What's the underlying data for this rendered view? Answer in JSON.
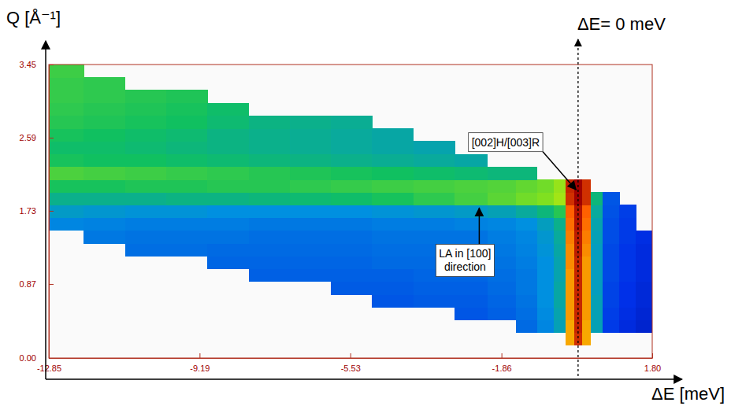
{
  "chart_data": {
    "type": "heatmap",
    "x_label": "ΔE [meV]",
    "y_label": "Q [Å⁻¹]",
    "xlim": [
      -12.85,
      1.8
    ],
    "ylim": [
      0,
      3.45
    ],
    "xticks": [
      -12.85,
      -9.19,
      -5.53,
      -1.86,
      {
        "value": 1.8,
        "label": "1.80"
      }
    ],
    "yticks": [
      {
        "value": 0,
        "label": "0.00"
      },
      0.87,
      1.73,
      2.59,
      3.45
    ],
    "zlim": [
      0,
      10
    ],
    "reference_line": {
      "x": 0,
      "label": "ΔE= 0 meV"
    },
    "annotations": [
      {
        "text": "[002]H/[003]R",
        "x": 0,
        "y": 1.95
      },
      {
        "text": "LA in [100] direction",
        "x": -2.4,
        "y": 1.8
      }
    ],
    "x_edges": [
      -12.85,
      -12.0,
      -11.0,
      -10.0,
      -9.0,
      -8.0,
      -7.0,
      -6.0,
      -5.0,
      -4.0,
      -3.0,
      -2.2,
      -1.5,
      -1.0,
      -0.6,
      -0.3,
      -0.1,
      0.1,
      0.3,
      0.6,
      1.0,
      1.4,
      1.8
    ],
    "y_edges": [
      0,
      0.15,
      0.3,
      0.45,
      0.6,
      0.75,
      0.9,
      1.05,
      1.2,
      1.35,
      1.5,
      1.65,
      1.8,
      1.95,
      2.1,
      2.25,
      2.4,
      2.55,
      2.7,
      2.85,
      3.0,
      3.15,
      3.3,
      3.45
    ],
    "z": [
      [
        null,
        null,
        null,
        null,
        null,
        null,
        null,
        null,
        null,
        null,
        null,
        null,
        null,
        null,
        null,
        null,
        null,
        null,
        null,
        null,
        null,
        null
      ],
      [
        null,
        null,
        null,
        null,
        null,
        null,
        null,
        null,
        null,
        null,
        null,
        null,
        null,
        null,
        null,
        8.5,
        9.5,
        8.5,
        null,
        null,
        null,
        null
      ],
      [
        null,
        null,
        null,
        null,
        null,
        null,
        null,
        null,
        null,
        null,
        null,
        null,
        3.2,
        3.8,
        4.5,
        8.5,
        9.6,
        8.5,
        4.5,
        2.2,
        1.8,
        1.5
      ],
      [
        null,
        null,
        null,
        null,
        null,
        null,
        null,
        null,
        null,
        null,
        2.8,
        3.0,
        3.3,
        3.9,
        4.6,
        8.6,
        9.6,
        8.6,
        4.5,
        2.3,
        1.9,
        1.6
      ],
      [
        null,
        null,
        null,
        null,
        null,
        null,
        null,
        null,
        2.8,
        2.9,
        2.9,
        3.1,
        3.4,
        4.0,
        4.7,
        8.6,
        9.6,
        8.6,
        4.5,
        2.4,
        2.0,
        1.7
      ],
      [
        null,
        null,
        null,
        null,
        null,
        null,
        null,
        2.9,
        2.9,
        3.0,
        3.0,
        3.2,
        3.5,
        4.0,
        4.7,
        8.6,
        9.6,
        8.6,
        4.4,
        2.4,
        2.0,
        1.7
      ],
      [
        null,
        null,
        null,
        null,
        null,
        3.0,
        3.0,
        3.0,
        3.0,
        3.1,
        3.1,
        3.3,
        3.5,
        4.0,
        4.6,
        8.6,
        9.6,
        8.6,
        4.4,
        2.5,
        2.1,
        1.8
      ],
      [
        null,
        null,
        null,
        null,
        3.1,
        3.1,
        3.1,
        3.1,
        3.2,
        3.2,
        3.2,
        3.4,
        3.6,
        4.0,
        4.6,
        8.7,
        9.6,
        8.6,
        4.4,
        2.5,
        2.1,
        1.8
      ],
      [
        null,
        null,
        3.3,
        3.3,
        3.2,
        3.2,
        3.2,
        3.2,
        3.3,
        3.3,
        3.3,
        3.5,
        3.7,
        4.1,
        4.7,
        8.7,
        9.7,
        8.7,
        4.4,
        2.5,
        2.1,
        1.8
      ],
      [
        null,
        3.5,
        3.4,
        3.4,
        3.4,
        3.3,
        3.3,
        3.3,
        3.4,
        3.4,
        3.4,
        3.6,
        3.8,
        4.2,
        4.8,
        8.8,
        9.7,
        8.8,
        4.5,
        2.6,
        2.2,
        1.9
      ],
      [
        3.8,
        3.7,
        3.6,
        3.6,
        3.6,
        3.5,
        3.5,
        3.5,
        3.6,
        3.6,
        3.7,
        3.8,
        4.0,
        4.4,
        5.0,
        8.9,
        9.8,
        8.9,
        4.6,
        2.6,
        2.2,
        null
      ],
      [
        4.3,
        4.2,
        4.1,
        4.1,
        4.0,
        4.0,
        4.0,
        4.0,
        4.1,
        4.2,
        4.3,
        4.5,
        4.8,
        5.2,
        5.8,
        9.0,
        9.8,
        9.0,
        4.8,
        2.7,
        2.3,
        null
      ],
      [
        5.0,
        5.0,
        5.0,
        5.1,
        5.1,
        5.2,
        5.3,
        5.4,
        5.6,
        5.9,
        6.2,
        6.5,
        6.8,
        7.0,
        7.3,
        9.5,
        10,
        9.5,
        5.2,
        2.8,
        null,
        null
      ],
      [
        5.6,
        5.6,
        5.7,
        5.7,
        5.8,
        5.8,
        5.9,
        6.0,
        6.1,
        6.2,
        6.3,
        6.4,
        6.6,
        6.8,
        7.2,
        9.6,
        10,
        9.5,
        null,
        null,
        null,
        null
      ],
      [
        6.3,
        6.2,
        6.1,
        6.0,
        5.9,
        5.8,
        5.7,
        5.6,
        5.5,
        5.4,
        5.3,
        5.2,
        5.2,
        null,
        null,
        null,
        null,
        null,
        null,
        null,
        null,
        null
      ],
      [
        5.6,
        5.5,
        5.5,
        5.4,
        5.3,
        5.2,
        5.1,
        5.0,
        4.9,
        4.8,
        4.7,
        null,
        null,
        null,
        null,
        null,
        null,
        null,
        null,
        null,
        null,
        null
      ],
      [
        5.4,
        5.4,
        5.3,
        5.2,
        5.1,
        5.0,
        4.9,
        4.8,
        4.7,
        4.6,
        null,
        null,
        null,
        null,
        null,
        null,
        null,
        null,
        null,
        null,
        null,
        null
      ],
      [
        5.6,
        5.5,
        5.4,
        5.3,
        5.1,
        5.0,
        4.9,
        4.8,
        4.7,
        null,
        null,
        null,
        null,
        null,
        null,
        null,
        null,
        null,
        null,
        null,
        null,
        null
      ],
      [
        5.8,
        5.7,
        5.6,
        5.5,
        5.3,
        5.1,
        5.0,
        4.9,
        null,
        null,
        null,
        null,
        null,
        null,
        null,
        null,
        null,
        null,
        null,
        null,
        null,
        null
      ],
      [
        5.9,
        5.8,
        5.7,
        5.6,
        5.4,
        null,
        null,
        null,
        null,
        null,
        null,
        null,
        null,
        null,
        null,
        null,
        null,
        null,
        null,
        null,
        null,
        null
      ],
      [
        6.0,
        5.9,
        5.8,
        5.7,
        null,
        null,
        null,
        null,
        null,
        null,
        null,
        null,
        null,
        null,
        null,
        null,
        null,
        null,
        null,
        null,
        null,
        null
      ],
      [
        6.0,
        5.9,
        null,
        null,
        null,
        null,
        null,
        null,
        null,
        null,
        null,
        null,
        null,
        null,
        null,
        null,
        null,
        null,
        null,
        null,
        null,
        null
      ],
      [
        6.1,
        null,
        null,
        null,
        null,
        null,
        null,
        null,
        null,
        null,
        null,
        null,
        null,
        null,
        null,
        null,
        null,
        null,
        null,
        null,
        null,
        null
      ]
    ]
  }
}
